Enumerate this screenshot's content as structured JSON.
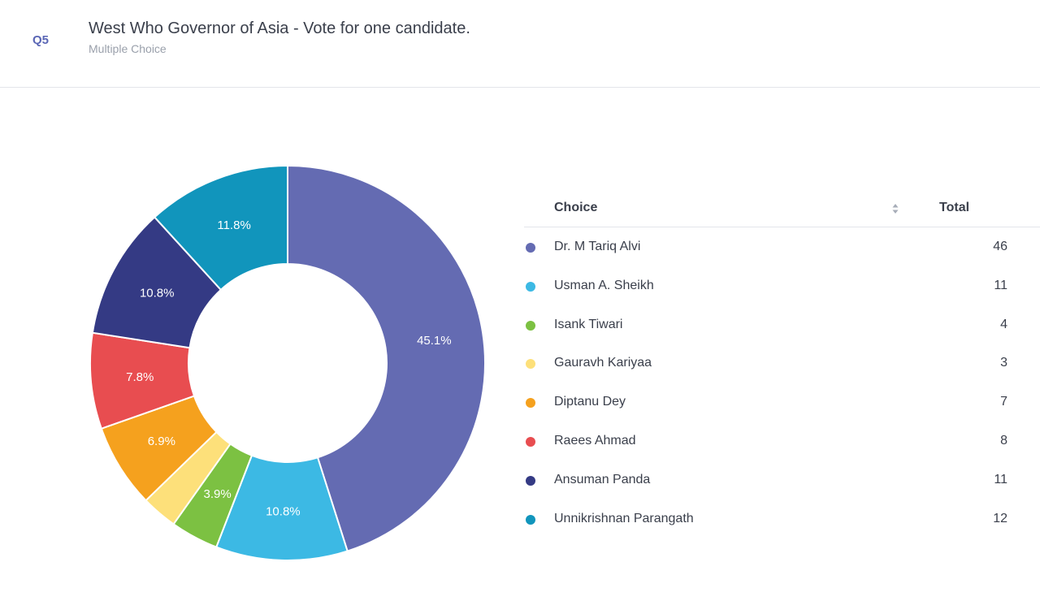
{
  "question": {
    "number": "Q5",
    "title": "West Who Governor of Asia - Vote for one candidate.",
    "type": "Multiple Choice"
  },
  "table": {
    "choice_header": "Choice",
    "total_header": "Total",
    "sort_icon": "sort-icon"
  },
  "chart_data": {
    "type": "pie",
    "donut": true,
    "categories": [
      "Dr. M Tariq Alvi",
      "Usman A. Sheikh",
      "Isank Tiwari",
      "Gauravh Kariyaa",
      "Diptanu Dey",
      "Raees Ahmad",
      "Ansuman Panda",
      "Unnikrishnan Parangath"
    ],
    "values": [
      46,
      11,
      4,
      3,
      7,
      8,
      11,
      12
    ],
    "labels": [
      "45.1%",
      "10.8%",
      "3.9%",
      "",
      "6.9%",
      "7.8%",
      "10.8%",
      "11.8%"
    ],
    "colors": [
      "#646bb2",
      "#3cb9e4",
      "#7cc142",
      "#fde07a",
      "#f5a11e",
      "#e84d50",
      "#343a84",
      "#1195bc"
    ],
    "legend_position": "right"
  }
}
